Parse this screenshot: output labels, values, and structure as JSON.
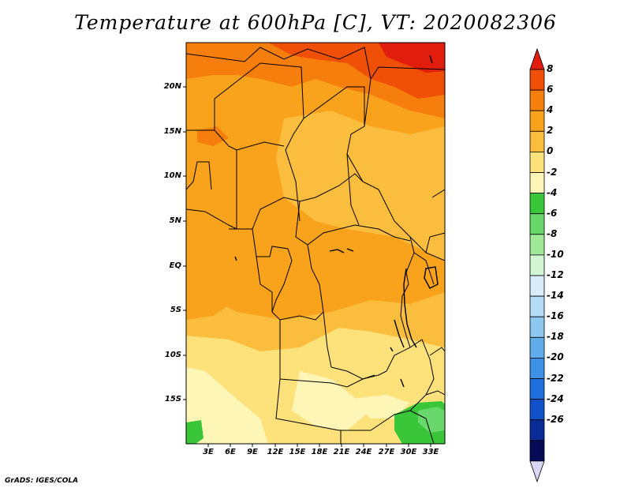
{
  "title": "Temperature at 600hPa [C], VT: 2020082306",
  "credit": "GrADS: IGES/COLA",
  "y_ticks": [
    "20N",
    "15N",
    "10N",
    "5N",
    "EQ",
    "5S",
    "10S",
    "15S"
  ],
  "x_ticks": [
    "3E",
    "6E",
    "9E",
    "12E",
    "15E",
    "18E",
    "21E",
    "24E",
    "27E",
    "30E",
    "33E"
  ],
  "colorbar": {
    "labels": [
      "8",
      "6",
      "4",
      "2",
      "0",
      "-2",
      "-4",
      "-6",
      "-8",
      "-10",
      "-12",
      "-14",
      "-16",
      "-18",
      "-20",
      "-22",
      "-24",
      "-26"
    ],
    "colors": [
      "#e11d0e",
      "#f04f08",
      "#f57e0d",
      "#f9a31c",
      "#fbbd3d",
      "#fde27c",
      "#fef6b6",
      "#39c639",
      "#69d86c",
      "#9fe998",
      "#d2f7d2",
      "#d8edf9",
      "#b4dcf5",
      "#8ec7f0",
      "#61acea",
      "#3c91e4",
      "#1e6edd",
      "#1050c9",
      "#0a2a95",
      "#050c55",
      "#d8d6f4"
    ]
  },
  "map_colors": {
    "c8": "#e11d0e",
    "c6": "#f04f08",
    "c4": "#f57e0d",
    "c2": "#f9a31c",
    "c0": "#fbbd3d",
    "cm2": "#fde27c",
    "cm4": "#fef6b6",
    "cm6": "#39c639",
    "cm8": "#69d86c"
  }
}
